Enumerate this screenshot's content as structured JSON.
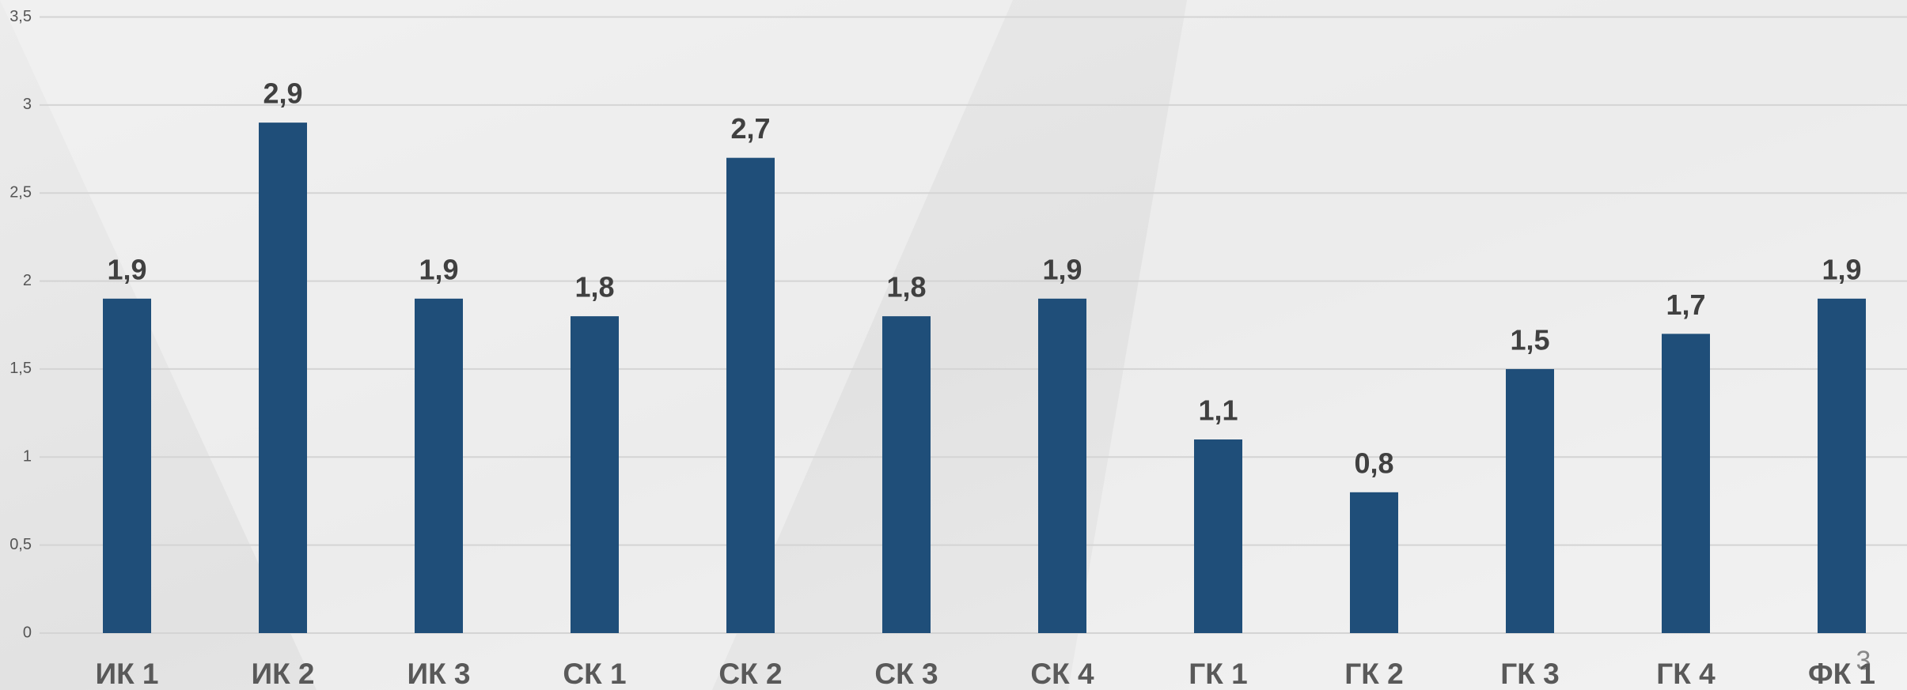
{
  "chart_data": {
    "type": "bar",
    "categories": [
      "ИК 1",
      "ИК 2",
      "ИК 3",
      "СК 1",
      "СК 2",
      "СК 3",
      "СК 4",
      "ГК 1",
      "ГК 2",
      "ГК 3",
      "ГК 4",
      "ФК 1"
    ],
    "values": [
      1.9,
      2.9,
      1.9,
      1.8,
      2.7,
      1.8,
      1.9,
      1.1,
      0.8,
      1.5,
      1.7,
      1.9
    ],
    "value_labels": [
      "1,9",
      "2,9",
      "1,9",
      "1,8",
      "2,7",
      "1,8",
      "1,9",
      "1,1",
      "0,8",
      "1,5",
      "1,7",
      "1,9"
    ],
    "color": "#1f4e79",
    "ylim": [
      0,
      3.5
    ],
    "yticks": [
      0,
      {
        "value": 0.5,
        "label": "0,5"
      },
      1,
      {
        "value": 1.5,
        "label": "1,5"
      },
      2,
      {
        "value": 2.5,
        "label": "2,5"
      },
      3,
      {
        "value": 3.5,
        "label": "3,5"
      }
    ],
    "grid": true
  },
  "slide_number": "3"
}
